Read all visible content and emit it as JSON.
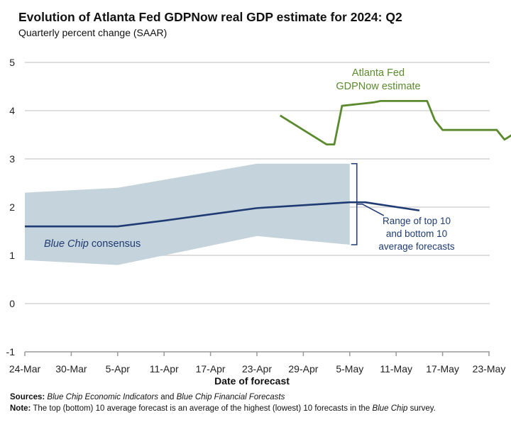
{
  "title": "Evolution of Atlanta Fed GDPNow real GDP estimate for 2024: Q2",
  "subtitle": "Quarterly percent change (SAAR)",
  "chart_data": {
    "type": "line",
    "xlabel": "Date of forecast",
    "ylabel": "",
    "ylim": [
      -1,
      5
    ],
    "yticks": [
      "-1",
      "0",
      "1",
      "2",
      "3",
      "4",
      "5"
    ],
    "xticks": [
      "24-Mar",
      "30-Mar",
      "5-Apr",
      "11-Apr",
      "17-Apr",
      "23-Apr",
      "29-Apr",
      "5-May",
      "11-May",
      "17-May",
      "23-May"
    ],
    "grid": true,
    "colors": {
      "gdpnow": "#5b8a2e",
      "consensus": "#1f3b73",
      "range": "#c5d3dc",
      "grid": "#d4d4d4"
    },
    "series": [
      {
        "name": "Blue Chip consensus",
        "x": [
          "24-Mar",
          "5-Apr",
          "11-Apr",
          "17-Apr",
          "23-Apr",
          "29-Apr",
          "5-May",
          "7-May",
          "14-May"
        ],
        "values": [
          1.6,
          1.6,
          1.72,
          1.85,
          1.98,
          2.04,
          2.1,
          2.1,
          1.93
        ]
      },
      {
        "name": "Atlanta Fed GDPNow estimate",
        "x": [
          "26-Apr",
          "2-May",
          "3-May",
          "4-May",
          "8-May",
          "9-May",
          "15-May",
          "16-May",
          "17-May",
          "24-May",
          "25-May",
          "26-May"
        ],
        "values": [
          3.9,
          3.3,
          3.3,
          4.1,
          4.17,
          4.2,
          4.2,
          3.8,
          3.6,
          3.6,
          3.4,
          3.5
        ]
      }
    ],
    "range_band": {
      "x": [
        "24-Mar",
        "5-Apr",
        "23-Apr",
        "5-May"
      ],
      "upper": [
        2.3,
        2.4,
        2.9,
        2.9
      ],
      "lower": [
        0.9,
        0.8,
        1.4,
        1.22
      ]
    },
    "annotations": {
      "gdpnow": [
        "Atlanta Fed",
        "GDPNow estimate"
      ],
      "consensus_italic": "Blue Chip",
      "consensus_rest": " consensus",
      "range": [
        "Range of top 10",
        "and bottom 10",
        "average forecasts"
      ]
    }
  },
  "footer": {
    "sources_label": "Sources:",
    "sources_italic_1": "Blue Chip Economic Indicators",
    "sources_mid": " and ",
    "sources_italic_2": "Blue Chip Financial Forecasts",
    "note_label": "Note:",
    "note_text": " The top (bottom) 10 average forecast is an average of the highest (lowest) 10 forecasts in the ",
    "note_italic": "Blue Chip",
    "note_end": " survey."
  }
}
